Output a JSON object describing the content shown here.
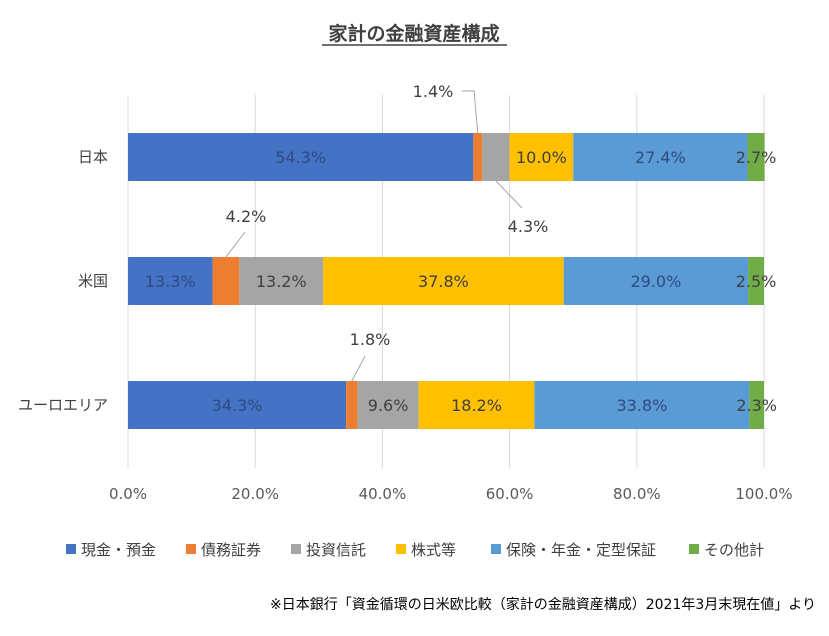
{
  "chart_data": {
    "type": "bar",
    "orientation": "horizontal",
    "stacking": "percent",
    "title": "家計の金融資産構成",
    "categories": [
      "日本",
      "米国",
      "ユーロエリア"
    ],
    "series": [
      {
        "name": "現金・預金",
        "color": "#4472c4",
        "values": [
          54.3,
          13.3,
          34.3
        ],
        "labels": [
          "54.3%",
          "13.3%",
          "34.3%"
        ]
      },
      {
        "name": "債務証券",
        "color": "#ed7d31",
        "values": [
          1.4,
          4.2,
          1.8
        ],
        "labels": [
          "1.4%",
          "4.2%",
          "1.8%"
        ]
      },
      {
        "name": "投資信託",
        "color": "#a5a5a5",
        "values": [
          4.3,
          13.2,
          9.6
        ],
        "labels": [
          "4.3%",
          "13.2%",
          "9.6%"
        ]
      },
      {
        "name": "株式等",
        "color": "#ffc000",
        "values": [
          10.0,
          37.8,
          18.2
        ],
        "labels": [
          "10.0%",
          "37.8%",
          "18.2%"
        ]
      },
      {
        "name": "保険・年金・定型保証",
        "color": "#5b9bd5",
        "values": [
          27.4,
          29.0,
          33.8
        ],
        "labels": [
          "27.4%",
          "29.0%",
          "33.8%"
        ]
      },
      {
        "name": "その他計",
        "color": "#70ad47",
        "values": [
          2.7,
          2.5,
          2.3
        ],
        "labels": [
          "2.7%",
          "2.5%",
          "2.3%"
        ]
      }
    ],
    "xlim": [
      0,
      100
    ],
    "xticks": [
      "0.0%",
      "20.0%",
      "40.0%",
      "60.0%",
      "80.0%",
      "100.0%"
    ],
    "grid": true,
    "legend_position": "bottom",
    "source_note": "※日本銀行「資金循環の日米欧比較（家計の金融資産構成）2021年3月末現在値」より"
  }
}
